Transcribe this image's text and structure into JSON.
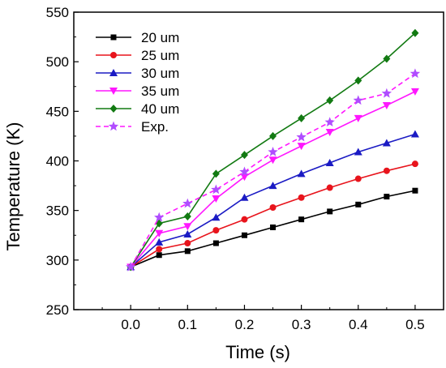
{
  "chart_data": {
    "type": "line",
    "xlabel": "Time (s)",
    "ylabel": "Temperature (K)",
    "xlim": [
      -0.1,
      0.55
    ],
    "ylim": [
      250,
      550
    ],
    "xticks": [
      0.0,
      0.1,
      0.2,
      0.3,
      0.4,
      0.5
    ],
    "xtick_labels": [
      "0.0",
      "0.1",
      "0.2",
      "0.3",
      "0.4",
      "0.5"
    ],
    "yticks": [
      250,
      300,
      350,
      400,
      450,
      500,
      550
    ],
    "ytick_labels": [
      "250",
      "300",
      "350",
      "400",
      "450",
      "500",
      "550"
    ],
    "grid": false,
    "legend_position": "top-left",
    "x": [
      0.0,
      0.05,
      0.1,
      0.15,
      0.2,
      0.25,
      0.3,
      0.35,
      0.4,
      0.45,
      0.5
    ],
    "series": [
      {
        "name": "20 um",
        "color": "#000000",
        "marker": "square",
        "dashed": false,
        "values": [
          293,
          305,
          309,
          317,
          325,
          333,
          341,
          349,
          356,
          364,
          370
        ]
      },
      {
        "name": "25 um",
        "color": "#e8141c",
        "marker": "circle",
        "dashed": false,
        "values": [
          293,
          311,
          317,
          330,
          341,
          353,
          363,
          373,
          382,
          390,
          397
        ]
      },
      {
        "name": "30 um",
        "color": "#1b1bc4",
        "marker": "triangle-up",
        "dashed": false,
        "values": [
          293,
          318,
          326,
          343,
          363,
          375,
          387,
          398,
          409,
          418,
          427
        ]
      },
      {
        "name": "35 um",
        "color": "#ff17ff",
        "marker": "triangle-down",
        "dashed": false,
        "values": [
          293,
          327,
          334,
          362,
          384,
          401,
          415,
          429,
          443,
          456,
          470
        ]
      },
      {
        "name": "40 um",
        "color": "#127a12",
        "marker": "diamond",
        "dashed": false,
        "values": [
          293,
          337,
          344,
          387,
          406,
          425,
          443,
          461,
          481,
          503,
          529
        ]
      },
      {
        "name": "Exp.",
        "color": "#ff17ff",
        "marker": "star",
        "marker_color": "#b04dff",
        "dashed": true,
        "values": [
          293,
          343,
          357,
          371,
          389,
          409,
          424,
          439,
          461,
          468,
          488
        ]
      }
    ]
  }
}
